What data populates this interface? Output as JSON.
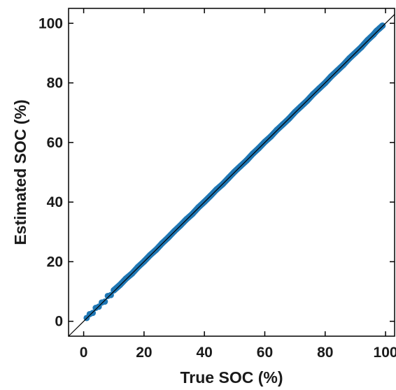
{
  "chart_data": {
    "type": "scatter",
    "title": "",
    "xlabel": "True SOC (%)",
    "ylabel": "Estimated SOC (%)",
    "xlim": [
      -5,
      103
    ],
    "ylim": [
      -5,
      105
    ],
    "xticks": [
      0,
      20,
      40,
      60,
      80,
      100
    ],
    "yticks": [
      0,
      20,
      40,
      60,
      80,
      100
    ],
    "grid": false,
    "marker_color": "#1f77b4",
    "reference_line": {
      "x": [
        -5,
        103
      ],
      "y": [
        -5,
        103
      ],
      "color": "#000000"
    },
    "series": [
      {
        "color": "#1f77b4",
        "points": [
          [
            1.0,
            1.1
          ],
          [
            2.0,
            2.4
          ],
          [
            3.0,
            2.8
          ],
          [
            4.0,
            4.5
          ],
          [
            5.0,
            4.9
          ],
          [
            6.0,
            6.3
          ],
          [
            7.0,
            6.6
          ],
          [
            8.0,
            8.5
          ],
          [
            9.0,
            8.8
          ],
          [
            10.0,
            10.4
          ],
          [
            12.0,
            12.2
          ],
          [
            14.0,
            14.3
          ],
          [
            16.0,
            16.0
          ],
          [
            18.0,
            18.2
          ],
          [
            20.0,
            20.1
          ],
          [
            22.0,
            22.2
          ],
          [
            24.0,
            24.0
          ],
          [
            26.0,
            26.2
          ],
          [
            28.0,
            28.1
          ],
          [
            30.0,
            30.2
          ],
          [
            32.0,
            32.1
          ],
          [
            34.0,
            34.2
          ],
          [
            36.0,
            36.0
          ],
          [
            38.0,
            38.2
          ],
          [
            40.0,
            40.1
          ],
          [
            42.0,
            42.1
          ],
          [
            44.0,
            44.2
          ],
          [
            46.0,
            46.0
          ],
          [
            48.0,
            48.1
          ],
          [
            50.0,
            50.2
          ],
          [
            52.0,
            52.1
          ],
          [
            54.0,
            54.0
          ],
          [
            56.0,
            56.2
          ],
          [
            58.0,
            58.1
          ],
          [
            60.0,
            60.2
          ],
          [
            62.0,
            62.0
          ],
          [
            64.0,
            64.2
          ],
          [
            66.0,
            66.1
          ],
          [
            68.0,
            68.0
          ],
          [
            70.0,
            70.2
          ],
          [
            72.0,
            72.1
          ],
          [
            74.0,
            74.0
          ],
          [
            76.0,
            76.2
          ],
          [
            78.0,
            78.1
          ],
          [
            80.0,
            80.0
          ],
          [
            82.0,
            82.2
          ],
          [
            84.0,
            84.1
          ],
          [
            86.0,
            86.0
          ],
          [
            88.0,
            88.2
          ],
          [
            90.0,
            90.1
          ],
          [
            92.0,
            92.0
          ],
          [
            94.0,
            94.3
          ],
          [
            96.0,
            96.2
          ],
          [
            97.0,
            97.4
          ],
          [
            98.0,
            98.3
          ],
          [
            99.0,
            99.2
          ]
        ]
      }
    ]
  }
}
